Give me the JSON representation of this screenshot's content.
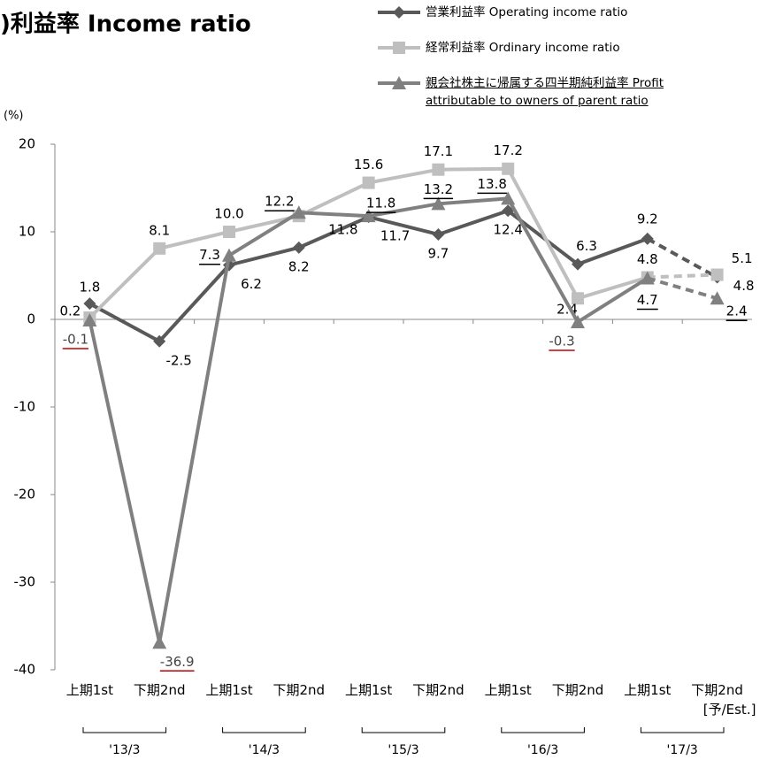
{
  "chart_data": {
    "type": "line",
    "title": ")利益率 Income ratio",
    "unit_label": "(%)",
    "categories": [
      "上期1st",
      "下期2nd",
      "上期1st",
      "下期2nd",
      "上期1st",
      "下期2nd",
      "上期1st",
      "下期2nd",
      "上期1st",
      "下期2nd\n[予/Est.]"
    ],
    "groups": [
      "'13/3",
      "'14/3",
      "'15/3",
      "'16/3",
      "'17/3"
    ],
    "series": [
      {
        "name": "営業利益率 Operating income ratio",
        "color": "#595959",
        "marker": "diamond",
        "values": [
          1.8,
          -2.5,
          6.2,
          8.2,
          11.7,
          9.7,
          12.4,
          6.3,
          9.2,
          4.8
        ]
      },
      {
        "name": "経常利益率 Ordinary income ratio",
        "color": "#bfbfbf",
        "marker": "square",
        "values": [
          0.2,
          8.1,
          10.0,
          11.8,
          15.6,
          17.1,
          17.2,
          2.4,
          4.8,
          5.1
        ],
        "value_labels": [
          "0.2",
          "8.1",
          "10.0",
          "11.8",
          "15.6",
          "17.1",
          "17.2",
          "2.4",
          "4.8",
          "5.1"
        ]
      },
      {
        "name": "親会社株主に帰属する四半期純利益率 Profit attributable to owners of parent ratio",
        "color": "#808080",
        "marker": "triangle",
        "underline_labels": true,
        "values": [
          -0.1,
          -36.9,
          7.3,
          12.2,
          11.8,
          13.2,
          13.8,
          -0.3,
          4.7,
          2.4
        ]
      }
    ],
    "ylim": [
      -40,
      20
    ],
    "yticks": [
      -40,
      -30,
      -20,
      -10,
      0,
      10,
      20
    ]
  }
}
